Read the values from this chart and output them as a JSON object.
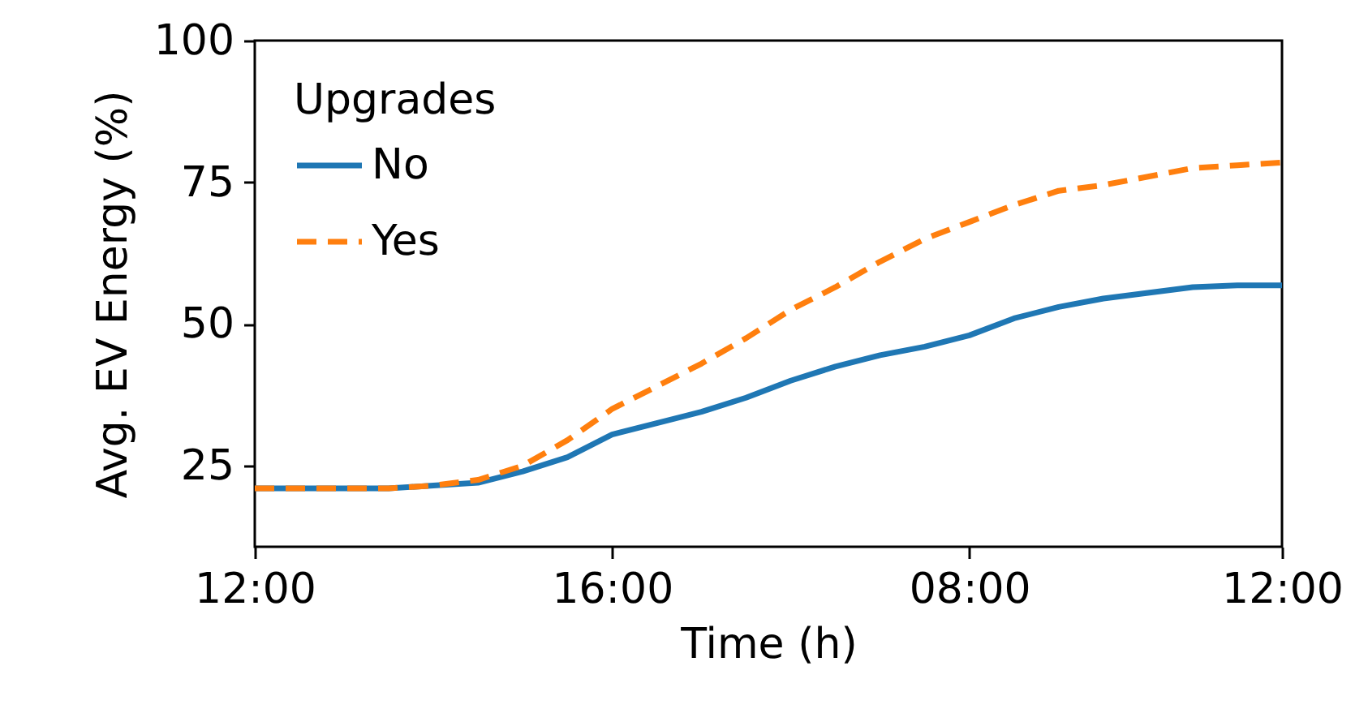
{
  "chart_data": {
    "type": "line",
    "xlabel": "Time (h)",
    "ylabel": "Avg. EV Energy (%)",
    "legend_title": "Upgrades",
    "legend": "top left",
    "grid": false,
    "categories": [
      "12:00",
      null,
      null,
      null,
      null,
      null,
      null,
      null,
      "16:00",
      null,
      null,
      null,
      null,
      null,
      null,
      null,
      "08:00",
      null,
      null,
      null,
      null,
      null,
      null,
      "12:00"
    ],
    "ylim": [
      10.7,
      100
    ],
    "yticks": [
      25,
      50,
      75,
      100
    ],
    "series": [
      {
        "name": "No",
        "color": "#1f77b4",
        "line_style": "solid",
        "values": [
          21,
          21,
          21,
          21,
          21.5,
          22,
          24,
          26.5,
          30.5,
          32.5,
          34.5,
          37,
          40,
          42.5,
          44.5,
          46,
          48,
          51,
          53,
          54.5,
          55.5,
          56.5,
          56.8,
          56.8
        ]
      },
      {
        "name": "Yes",
        "color": "#ff7f0e",
        "line_style": "dashed",
        "values": [
          21,
          21,
          21,
          21,
          21.5,
          22.5,
          25,
          29.5,
          35,
          39,
          43,
          47.5,
          52.5,
          56.5,
          61,
          65,
          68,
          71,
          73.5,
          74.5,
          76,
          77.5,
          78,
          78.5
        ]
      }
    ]
  }
}
